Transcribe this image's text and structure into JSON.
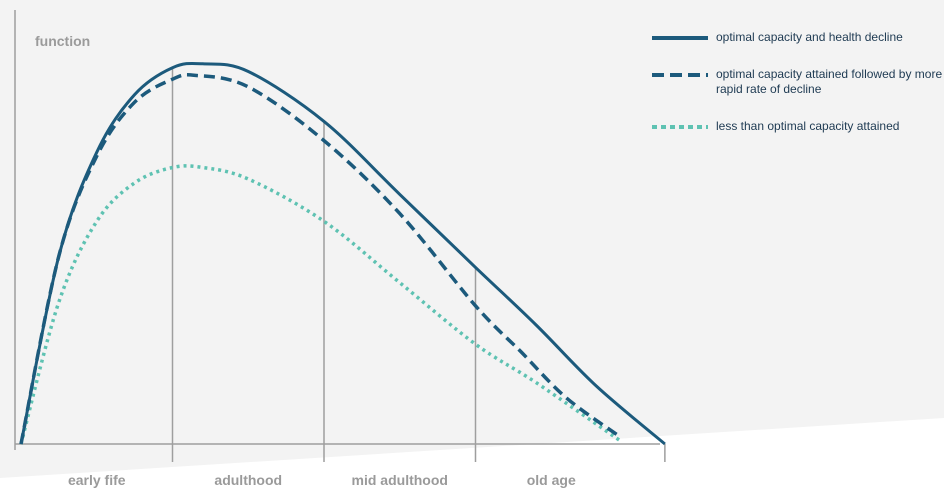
{
  "chart_data": {
    "type": "line",
    "title": "",
    "ylabel": "function",
    "xlabel": "",
    "categories": [
      "early fife",
      "adulthood",
      "mid adulthood",
      "old age"
    ],
    "x_range": [
      0,
      4
    ],
    "ylim": [
      0,
      100
    ],
    "grid": "vertical lines at category boundaries",
    "legend_position": "top-right",
    "series": [
      {
        "name": "optimal capacity and health decline",
        "style": "solid",
        "color": "#1c5a7c",
        "x": [
          0,
          0.25,
          0.5,
          0.75,
          1.0,
          1.2,
          1.5,
          2.0,
          2.5,
          3.0,
          3.4,
          3.8,
          4.25
        ],
        "y": [
          0,
          49,
          76,
          91,
          98,
          99,
          97,
          84,
          65,
          46,
          31,
          15,
          0
        ]
      },
      {
        "name": "optimal capacity attained followed by more rapid rate of decline",
        "style": "dashed",
        "color": "#1c5a7c",
        "x": [
          0,
          0.25,
          0.5,
          0.75,
          1.0,
          1.15,
          1.5,
          2.0,
          2.5,
          3.0,
          3.3,
          3.6,
          3.95
        ],
        "y": [
          0,
          49,
          75,
          89,
          95,
          96,
          93,
          79,
          60,
          36,
          24,
          12,
          2
        ]
      },
      {
        "name": "less than optimal capacity attained",
        "style": "dotted",
        "color": "#5ec2b2",
        "x": [
          0,
          0.25,
          0.5,
          0.75,
          1.0,
          1.2,
          1.5,
          2.0,
          2.5,
          3.0,
          3.4,
          3.95
        ],
        "y": [
          0,
          37,
          58,
          68,
          72,
          72,
          69,
          58,
          42,
          26,
          16,
          1
        ]
      }
    ]
  }
}
